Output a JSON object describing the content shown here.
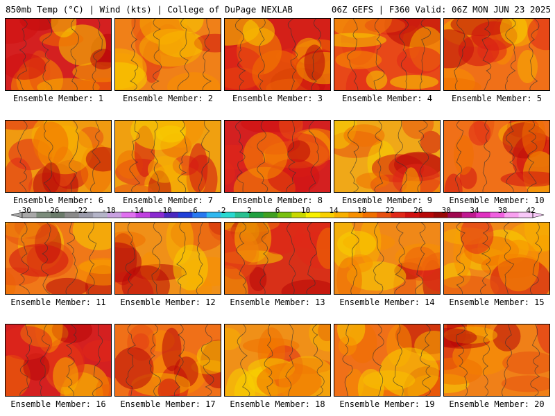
{
  "header": {
    "left": "850mb Temp (°C) | Wind (kts) | College of DuPage NEXLAB",
    "right": "06Z GEFS | F360 Valid: 06Z MON JUN 23 2025"
  },
  "panels": [
    {
      "label": "Ensemble Member: 1",
      "base": "#d42020"
    },
    {
      "label": "Ensemble Member: 2",
      "base": "#f08018"
    },
    {
      "label": "Ensemble Member: 3",
      "base": "#d42018"
    },
    {
      "label": "Ensemble Member: 4",
      "base": "#e84818"
    },
    {
      "label": "Ensemble Member: 5",
      "base": "#f07018"
    },
    {
      "label": "Ensemble Member: 6",
      "base": "#f09a10"
    },
    {
      "label": "Ensemble Member: 7",
      "base": "#f0a010"
    },
    {
      "label": "Ensemble Member: 8",
      "base": "#d42020"
    },
    {
      "label": "Ensemble Member: 9",
      "base": "#f0a818"
    },
    {
      "label": "Ensemble Member: 10",
      "base": "#f07018"
    },
    {
      "label": "Ensemble Member: 11",
      "base": "#f07818"
    },
    {
      "label": "Ensemble Member: 12",
      "base": "#f09018"
    },
    {
      "label": "Ensemble Member: 13",
      "base": "#d83018"
    },
    {
      "label": "Ensemble Member: 14",
      "base": "#f08818"
    },
    {
      "label": "Ensemble Member: 15",
      "base": "#f08818"
    },
    {
      "label": "Ensemble Member: 16",
      "base": "#d42020"
    },
    {
      "label": "Ensemble Member: 17",
      "base": "#f07018"
    },
    {
      "label": "Ensemble Member: 18",
      "base": "#f09018"
    },
    {
      "label": "Ensemble Member: 19",
      "base": "#f07018"
    },
    {
      "label": "Ensemble Member: 20",
      "base": "#f08018"
    }
  ],
  "colorbar": {
    "ticks": [
      "-30",
      "-26",
      "-22",
      "-18",
      "-14",
      "-10",
      "-6",
      "-2",
      "2",
      "6",
      "10",
      "14",
      "18",
      "22",
      "26",
      "30",
      "34",
      "38",
      "42"
    ],
    "colors": [
      "#a8a8a8",
      "#7c8c7c",
      "#6a7a6a",
      "#8a8a8a",
      "#9a9aaa",
      "#b4b4c8",
      "#c8a0e0",
      "#e070f0",
      "#c040e0",
      "#8a2ad0",
      "#4a28c0",
      "#2040d8",
      "#2878f0",
      "#30b8f0",
      "#28d8d0",
      "#28c090",
      "#20a040",
      "#40a020",
      "#78c010",
      "#c8d800",
      "#f8f000",
      "#f8d000",
      "#f8b000",
      "#f89000",
      "#f07000",
      "#e85010",
      "#e02818",
      "#d01010",
      "#b80808",
      "#980808",
      "#a00850",
      "#c01890",
      "#e030c0",
      "#f060e0",
      "#f8a0f0",
      "#f8c8f8"
    ]
  }
}
